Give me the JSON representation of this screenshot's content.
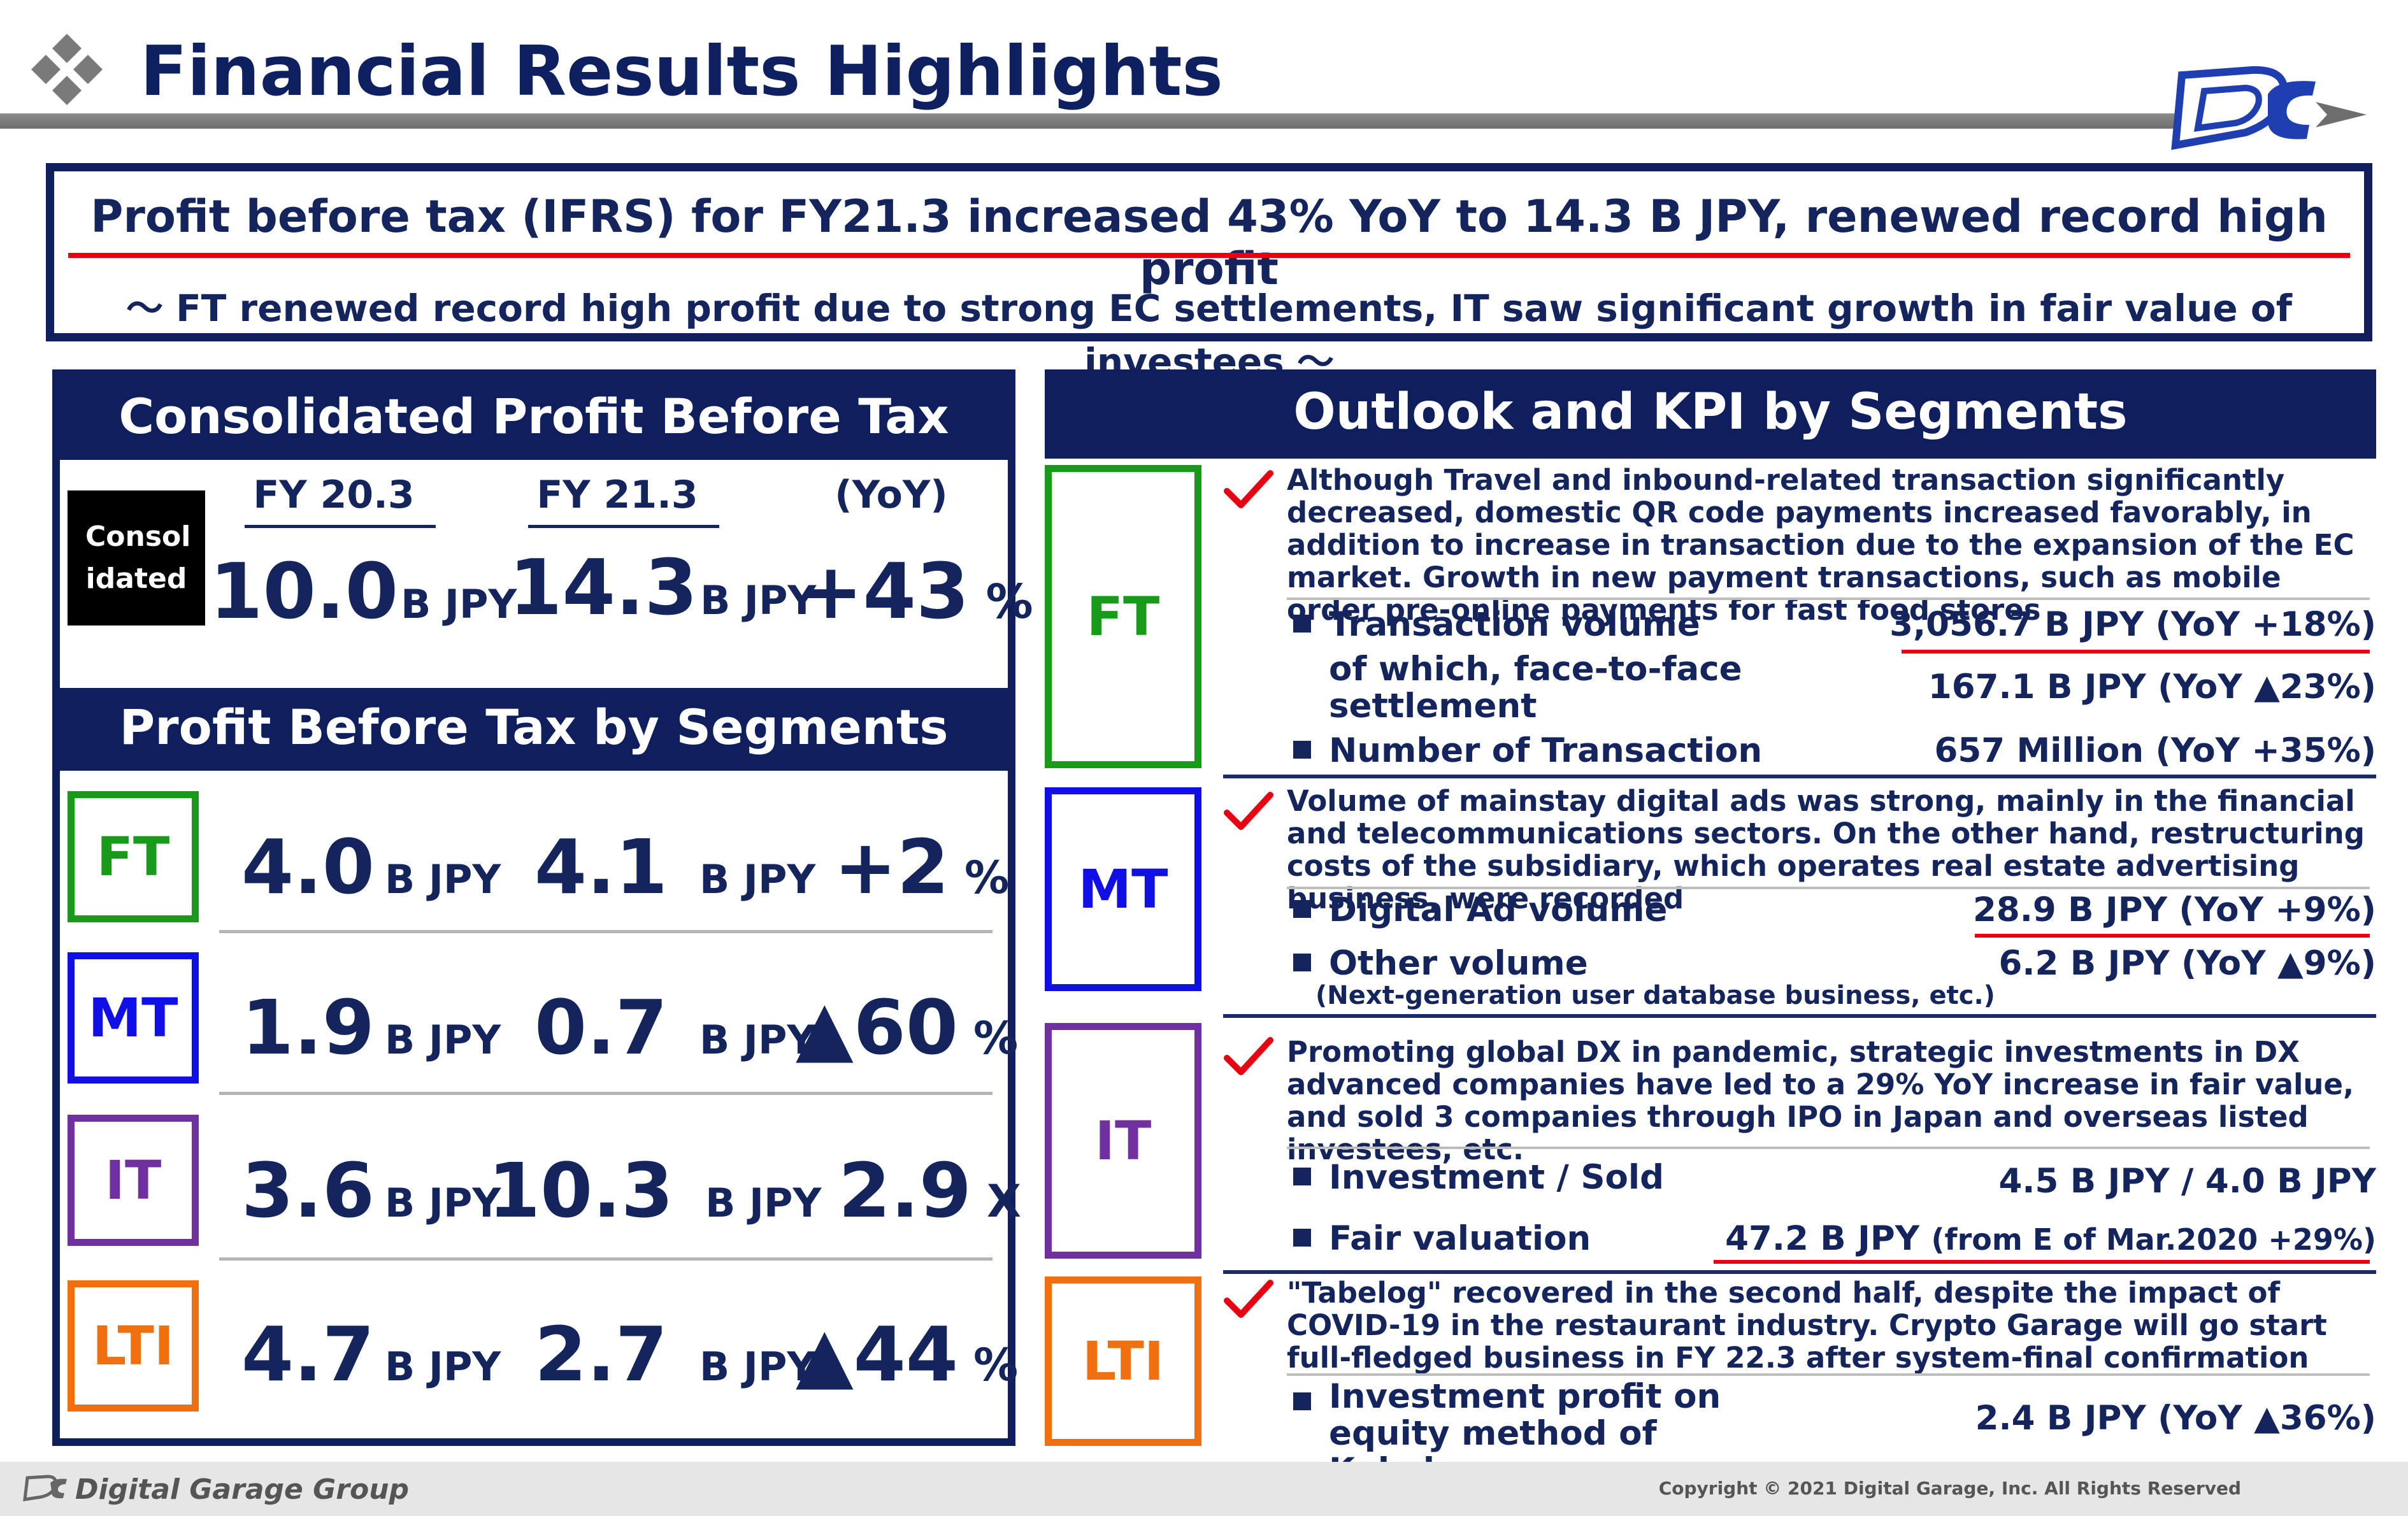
{
  "header": {
    "title": "Financial Results Highlights"
  },
  "headline": {
    "main": "Profit before tax (IFRS) for FY21.3 increased 43% YoY to 14.3 B JPY, renewed record high profit",
    "sub": "～ FT renewed record high profit due to strong EC settlements, IT saw significant growth in fair value of investees ～"
  },
  "left": {
    "title": "Consolidated Profit Before Tax",
    "col_fy20": "FY 20.3",
    "col_fy21": "FY 21.3",
    "col_yoy": "(YoY)",
    "consolidated": {
      "badge": "Consol idated",
      "fy20": "10.0",
      "fy20_unit": "B JPY",
      "fy21": "14.3",
      "fy21_unit": "B JPY",
      "yoy": "+43",
      "yoy_unit": "%"
    },
    "segments_title": "Profit Before Tax by Segments",
    "segments": [
      {
        "name": "FT",
        "color": "#1a9a1a",
        "fy20": "4.0",
        "fy20_unit": "B JPY",
        "fy21": "4.1",
        "fy21_unit": "B JPY",
        "yoy": "+2",
        "yoy_unit": "%"
      },
      {
        "name": "MT",
        "color": "#1010e6",
        "fy20": "1.9",
        "fy20_unit": "B JPY",
        "fy21": "0.7",
        "fy21_unit": "B JPY",
        "yoy": "▲60",
        "yoy_unit": "%"
      },
      {
        "name": "IT",
        "color": "#7030a0",
        "fy20": "3.6",
        "fy20_unit": "B JPY",
        "fy21": "10.3",
        "fy21_unit": "B JPY",
        "yoy": "2.9",
        "yoy_unit": "X"
      },
      {
        "name": "LTI",
        "color": "#f07010",
        "fy20": "4.7",
        "fy20_unit": "B JPY",
        "fy21": "2.7",
        "fy21_unit": "B JPY",
        "yoy": "▲44",
        "yoy_unit": "%"
      }
    ]
  },
  "right": {
    "title": "Outlook and KPI by Segments",
    "ft": {
      "badge": "FT",
      "desc": "Although Travel and inbound-related transaction significantly decreased, domestic QR code payments increased favorably, in addition to increase in transaction due to the expansion of the EC market. Growth in new payment transactions, such as mobile order pre-online payments for fast food stores",
      "kpi1_label": "Transaction volume",
      "kpi1_value": "3,056.7 B JPY (YoY +18%)",
      "kpi1b_label": "of which, face-to-face settlement",
      "kpi1b_value": "167.1 B JPY  (YoY ▲23%)",
      "kpi2_label": "Number of Transaction",
      "kpi2_value": "657 Million (YoY +35%)"
    },
    "mt": {
      "badge": "MT",
      "desc": "Volume of mainstay digital ads was strong, mainly in the financial and telecommunications sectors. On the other hand, restructuring costs of the subsidiary, which operates real estate advertising business, were recorded",
      "kpi1_label": "Digital Ad volume",
      "kpi1_value": "28.9 B JPY (YoY +9%)",
      "kpi2_label": "Other volume",
      "kpi2_value": "6.2 B JPY (YoY ▲9%)",
      "note": "(Next-generation user database business, etc.)"
    },
    "it": {
      "badge": "IT",
      "desc": "Promoting global DX in pandemic, strategic investments in DX advanced companies have led to a 29% YoY increase in fair value, and sold 3 companies through IPO in Japan and overseas listed investees, etc.",
      "kpi1_label": "Investment / Sold",
      "kpi1_value": "4.5 B JPY / 4.0 B JPY",
      "kpi2_label": "Fair valuation",
      "kpi2_value": "47.2 B JPY",
      "kpi2_value_small": "(from E of Mar.2020  +29%)"
    },
    "lti": {
      "badge": "LTI",
      "desc": "\"Tabelog\" recovered in the second half, despite the impact of COVID-19 in the restaurant industry. Crypto Garage will go start full-fledged business in FY 22.3 after system-final confirmation",
      "kpi1_label": "Investment profit on equity method of Kakaku.com",
      "kpi1_value": "2.4 B JPY (YoY ▲36%)"
    }
  },
  "footer": {
    "brand": "Digital Garage Group",
    "copyright": "Copyright © 2021 Digital Garage, Inc. All Rights Reserved"
  },
  "colors": {
    "navy": "#0f1f5e",
    "red": "#e60012",
    "ft": "#1a9a1a",
    "mt": "#1010e6",
    "it": "#7030a0",
    "lti": "#f07010"
  },
  "icons": [
    "diamond-cluster-icon",
    "dg-logo-icon",
    "check-icon"
  ]
}
